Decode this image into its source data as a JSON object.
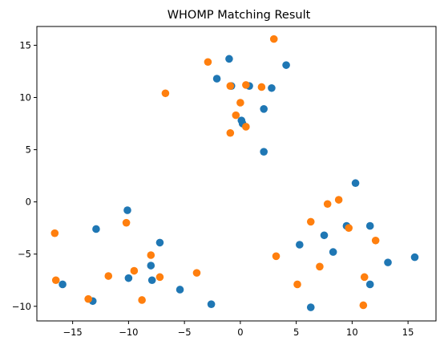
{
  "chart_data": {
    "type": "scatter",
    "title": "WHOMP Matching Result",
    "xlabel": "",
    "ylabel": "",
    "xlim": [
      -18.2,
      17.5
    ],
    "ylim": [
      -11.4,
      16.8
    ],
    "xticks": [
      -15,
      -10,
      -5,
      0,
      5,
      10,
      15
    ],
    "yticks": [
      -10,
      -5,
      0,
      5,
      10,
      15
    ],
    "grid": false,
    "legend": "none",
    "series": [
      {
        "color": "#1f77b4",
        "points": [
          [
            -1.0,
            13.7
          ],
          [
            4.1,
            13.1
          ],
          [
            -2.1,
            11.8
          ],
          [
            -0.8,
            11.1
          ],
          [
            0.8,
            11.1
          ],
          [
            2.8,
            10.9
          ],
          [
            2.1,
            8.9
          ],
          [
            0.1,
            7.8
          ],
          [
            0.2,
            7.5
          ],
          [
            2.1,
            4.8
          ],
          [
            -10.1,
            -0.8
          ],
          [
            -12.9,
            -2.6
          ],
          [
            -7.2,
            -3.9
          ],
          [
            -8.0,
            -6.1
          ],
          [
            -10.0,
            -7.3
          ],
          [
            -7.9,
            -7.5
          ],
          [
            -15.9,
            -7.9
          ],
          [
            -13.2,
            -9.5
          ],
          [
            -5.4,
            -8.4
          ],
          [
            -2.6,
            -9.8
          ],
          [
            10.3,
            1.8
          ],
          [
            9.5,
            -2.3
          ],
          [
            11.6,
            -2.3
          ],
          [
            7.5,
            -3.2
          ],
          [
            5.3,
            -4.1
          ],
          [
            8.3,
            -4.8
          ],
          [
            13.2,
            -5.8
          ],
          [
            15.6,
            -5.3
          ],
          [
            11.6,
            -7.9
          ],
          [
            6.3,
            -10.1
          ]
        ]
      },
      {
        "color": "#ff7f0e",
        "points": [
          [
            3.0,
            15.6
          ],
          [
            -2.9,
            13.4
          ],
          [
            -0.9,
            11.1
          ],
          [
            0.5,
            11.2
          ],
          [
            1.9,
            11.0
          ],
          [
            -6.7,
            10.4
          ],
          [
            0.0,
            9.5
          ],
          [
            -0.4,
            8.3
          ],
          [
            0.5,
            7.2
          ],
          [
            -0.9,
            6.6
          ],
          [
            -16.6,
            -3.0
          ],
          [
            -10.2,
            -2.0
          ],
          [
            -8.0,
            -5.1
          ],
          [
            -9.5,
            -6.6
          ],
          [
            -11.8,
            -7.1
          ],
          [
            -7.2,
            -7.2
          ],
          [
            -3.9,
            -6.8
          ],
          [
            -16.5,
            -7.5
          ],
          [
            -13.6,
            -9.3
          ],
          [
            -8.8,
            -9.4
          ],
          [
            8.8,
            0.2
          ],
          [
            7.8,
            -0.2
          ],
          [
            6.3,
            -1.9
          ],
          [
            9.7,
            -2.5
          ],
          [
            12.1,
            -3.7
          ],
          [
            3.2,
            -5.2
          ],
          [
            7.1,
            -6.2
          ],
          [
            11.1,
            -7.2
          ],
          [
            5.1,
            -7.9
          ],
          [
            11.0,
            -9.9
          ]
        ]
      }
    ]
  }
}
